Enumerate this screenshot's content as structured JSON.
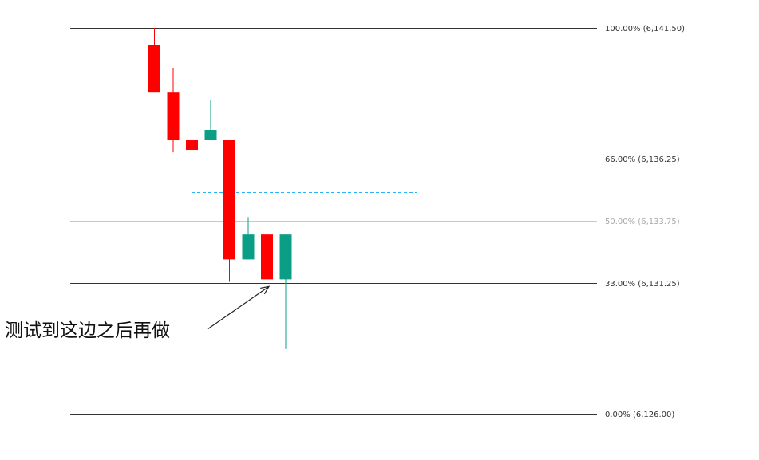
{
  "chart_data": {
    "type": "candlestick",
    "ylim": [
      6126.0,
      6141.5
    ],
    "colors": {
      "up": "#0b9e87",
      "down": "#ff0000",
      "level_line": "#333333",
      "mid_level_line": "#c8c8c8",
      "mid_level_text": "#a8a8a8",
      "dashed_line": "#29b6f6",
      "arrow": "#222222"
    },
    "fib_levels": [
      {
        "ratio": 1.0,
        "price": 6141.5,
        "label": "100.00% (6,141.50)",
        "style": "dark"
      },
      {
        "ratio": 0.66,
        "price": 6136.25,
        "label": "66.00% (6,136.25)",
        "style": "dark"
      },
      {
        "ratio": 0.5,
        "price": 6133.75,
        "label": "50.00% (6,133.75)",
        "style": "light"
      },
      {
        "ratio": 0.33,
        "price": 6131.25,
        "label": "33.00% (6,131.25)",
        "style": "dark"
      },
      {
        "ratio": 0.0,
        "price": 6126.0,
        "label": "0.00% (6,126.00)",
        "style": "dark"
      }
    ],
    "candles": [
      {
        "open": 6140.8,
        "high": 6141.5,
        "low": 6138.9,
        "close": 6138.9,
        "direction": "down"
      },
      {
        "open": 6138.9,
        "high": 6139.9,
        "low": 6136.5,
        "close": 6137.0,
        "direction": "down"
      },
      {
        "open": 6137.0,
        "high": 6137.0,
        "low": 6134.9,
        "close": 6136.6,
        "direction": "down"
      },
      {
        "open": 6137.0,
        "high": 6138.6,
        "low": 6137.0,
        "close": 6137.4,
        "direction": "up"
      },
      {
        "open": 6137.0,
        "high": 6137.0,
        "low": 6131.3,
        "close": 6132.2,
        "direction": "down"
      },
      {
        "open": 6132.2,
        "high": 6133.9,
        "low": 6132.2,
        "close": 6133.2,
        "direction": "up"
      },
      {
        "open": 6133.2,
        "high": 6133.8,
        "low": 6129.9,
        "close": 6131.4,
        "direction": "down"
      },
      {
        "open": 6131.4,
        "high": 6133.2,
        "low": 6128.6,
        "close": 6133.2,
        "direction": "up"
      }
    ],
    "dashed_level": {
      "price": 6134.9,
      "from_candle": 2
    },
    "annotation": {
      "text": "测试到这边之后再做",
      "target_candle": 6,
      "target_price": 6131.4
    }
  }
}
